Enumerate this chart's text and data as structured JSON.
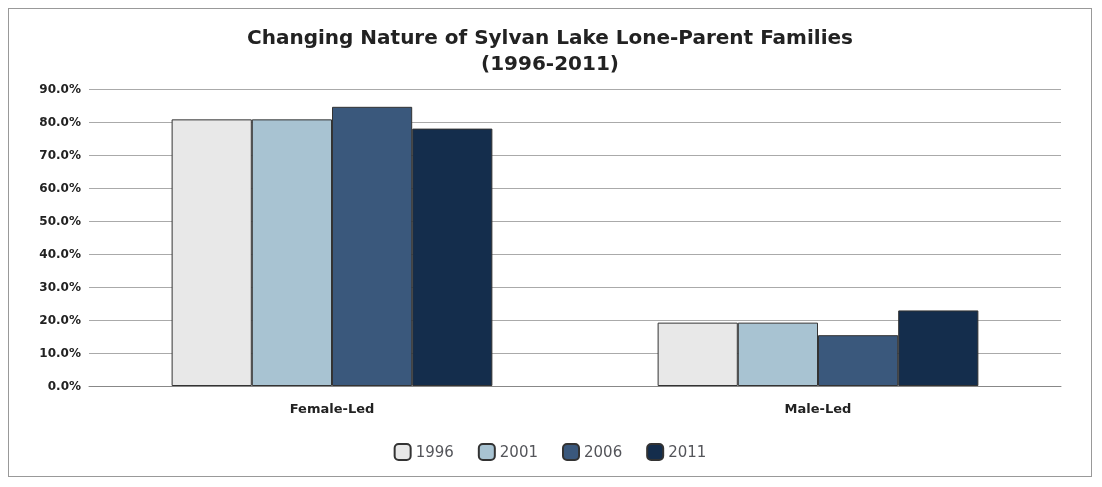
{
  "chart_data": {
    "type": "bar",
    "title": "Changing Nature of Sylvan Lake Lone-Parent Families\n(1996-2011)",
    "categories": [
      "Female-Led",
      "Male-Led"
    ],
    "series": [
      {
        "name": "1996",
        "color": "#e8e8e8",
        "values": [
          80.8,
          19.2
        ]
      },
      {
        "name": "2001",
        "color": "#a8c3d2",
        "values": [
          80.8,
          19.2
        ]
      },
      {
        "name": "2006",
        "color": "#3a587c",
        "values": [
          84.6,
          15.4
        ]
      },
      {
        "name": "2011",
        "color": "#142d4c",
        "values": [
          78.0,
          22.9
        ]
      }
    ],
    "ylim": [
      0,
      90
    ],
    "yticks": [
      {
        "value": 0,
        "label": "0.0%"
      },
      {
        "value": 10,
        "label": "10.0%"
      },
      {
        "value": 20,
        "label": "20.0%"
      },
      {
        "value": 30,
        "label": "30.0%"
      },
      {
        "value": 40,
        "label": "40.0%"
      },
      {
        "value": 50,
        "label": "50.0%"
      },
      {
        "value": 60,
        "label": "60.0%"
      },
      {
        "value": 70,
        "label": "70.0%"
      },
      {
        "value": 80,
        "label": "80.0%"
      },
      {
        "value": 90,
        "label": "90.0%"
      }
    ],
    "grid": "y",
    "legend": "bottom"
  }
}
